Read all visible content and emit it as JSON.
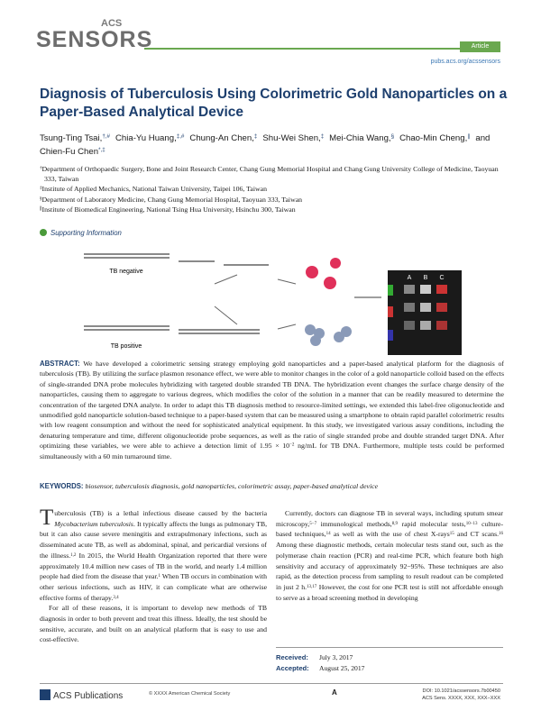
{
  "header": {
    "journal_prefix": "ACS",
    "journal": "SENSORS",
    "article_type": "Article",
    "url": "pubs.acs.org/acssensors"
  },
  "title": "Diagnosis of Tuberculosis Using Colorimetric Gold Nanoparticles on a Paper-Based Analytical Device",
  "authors": [
    {
      "name": "Tsung-Ting Tsai,",
      "sup": "†,#"
    },
    {
      "name": "Chia-Yu Huang,",
      "sup": "‡,#"
    },
    {
      "name": "Chung-An Chen,",
      "sup": "‡"
    },
    {
      "name": "Shu-Wei Shen,",
      "sup": "‡"
    },
    {
      "name": "Mei-Chia Wang,",
      "sup": "§"
    },
    {
      "name": "Chao-Min Cheng,",
      "sup": "∥"
    },
    {
      "name": "and Chien-Fu Chen",
      "sup": "*,‡"
    }
  ],
  "affiliations": [
    {
      "mark": "†",
      "text": "Department of Orthopaedic Surgery, Bone and Joint Research Center, Chang Gung Memorial Hospital and Chang Gung University College of Medicine, Taoyuan 333, Taiwan"
    },
    {
      "mark": "‡",
      "text": "Institute of Applied Mechanics, National Taiwan University, Taipei 106, Taiwan"
    },
    {
      "mark": "§",
      "text": "Department of Laboratory Medicine, Chang Gung Memorial Hospital, Taoyuan 333, Taiwan"
    },
    {
      "mark": "∥",
      "text": "Institute of Biomedical Engineering, National Tsing Hua University, Hsinchu 300, Taiwan"
    }
  ],
  "supporting_info": "Supporting Information",
  "graphic": {
    "negative": "TB negative",
    "positive": "TB positive",
    "columns": [
      "A",
      "B",
      "C"
    ]
  },
  "abstract": {
    "label": "ABSTRACT:",
    "runs": [
      "We have developed a colorimetric sensing strategy employing gold nanoparticles and a paper-based analytical platform for the diagnosis of tuberculosis (TB). By utilizing the surface plasmon resonance effect, we were able to monitor changes in the color of a gold nanoparticle colloid based on the effects of single-stranded DNA probe molecules hybridizing with targeted double stranded TB DNA. The hybridization event changes the surface charge density of the nanoparticles, causing them to aggregate to various degrees, which modifies the color of the solution in a manner that can be readily measured to determine the concentration of the targeted DNA analyte. In order to adapt this TB diagnosis method to resource-limited settings, we extended this label-free oligonucleotide and unmodified gold nanoparticle solution-based technique to a paper-based system that can be measured using a smartphone to obtain rapid parallel colorimetric results with low reagent consumption and without the need for sophisticated analytical equipment. In this study, we investigated various assay conditions, including the denaturing temperature and time, different oligonucleotide probe sequences, as well as the ratio of single stranded probe and double stranded target DNA. After optimizing these variables, we were able to achieve a detection limit of 1.95 × 10",
      {
        "sup": "−2"
      },
      " ng/mL for TB DNA. Furthermore, multiple tests could be performed simultaneously with a 60 min turnaround time."
    ]
  },
  "keywords": {
    "label": "KEYWORDS:",
    "text": "biosensor, tuberculosis diagnosis, gold nanoparticles, colorimetric assay, paper-based analytical device"
  },
  "body": {
    "left": [
      {
        "runs": [
          "Tuberculosis (TB) is a lethal infectious disease caused by the bacteria ",
          {
            "i": "Mycobacterium tuberculosis"
          },
          ". It typically affects the lungs as pulmonary TB, but it can also cause severe meningitis and extrapulmonary infections, such as disseminated acute TB, as well as abdominal, spinal, and pericardial versions of the illness.",
          {
            "sup": "1,2"
          },
          " In 2015, the World Health Organization reported that there were approximately 10.4 million new cases of TB in the world, and nearly 1.4 million people had died from the disease that year.",
          {
            "sup": "1"
          },
          " When TB occurs in combination with other serious infections, such as HIV, it can complicate what are otherwise effective forms of therapy.",
          {
            "sup": "3,4"
          }
        ]
      },
      {
        "runs": [
          "For all of these reasons, it is important to develop new methods of TB diagnosis in order to both prevent and treat this illness. Ideally, the test should be sensitive, accurate, and built on an analytical platform that is easy to use and cost-effective."
        ]
      }
    ],
    "right": [
      {
        "runs": [
          "Currently, doctors can diagnose TB in several ways, including sputum smear microscopy,",
          {
            "sup": "5−7"
          },
          " immunological methods,",
          {
            "sup": "8,9"
          },
          " rapid molecular tests,",
          {
            "sup": "10−13"
          },
          " culture-based techniques,",
          {
            "sup": "14"
          },
          " as well as with the use of chest X-rays",
          {
            "sup": "15"
          },
          " and CT scans.",
          {
            "sup": "16"
          },
          " Among these diagnostic methods, certain molecular tests stand out, such as the polymerase chain reaction (PCR) and real-time PCR, which feature both high sensitivity and accuracy of approximately 92−95%. These techniques are also rapid, as the detection process from sampling to result readout can be completed in just 2 h.",
          {
            "sup": "13,17"
          },
          " However, the cost for one PCR test is still not affordable enough to serve as a broad screening method in developing"
        ]
      }
    ]
  },
  "dates": [
    {
      "label": "Received:",
      "date": "July 3, 2017"
    },
    {
      "label": "Accepted:",
      "date": "August 25, 2017"
    }
  ],
  "footer": {
    "publisher": "ACS Publications",
    "copyright": "© XXXX American Chemical Society",
    "page": "A",
    "doi": "DOI: 10.1021/acssensors.7b00450",
    "citation": "ACS Sens. XXXX, XXX, XXX−XXX"
  }
}
